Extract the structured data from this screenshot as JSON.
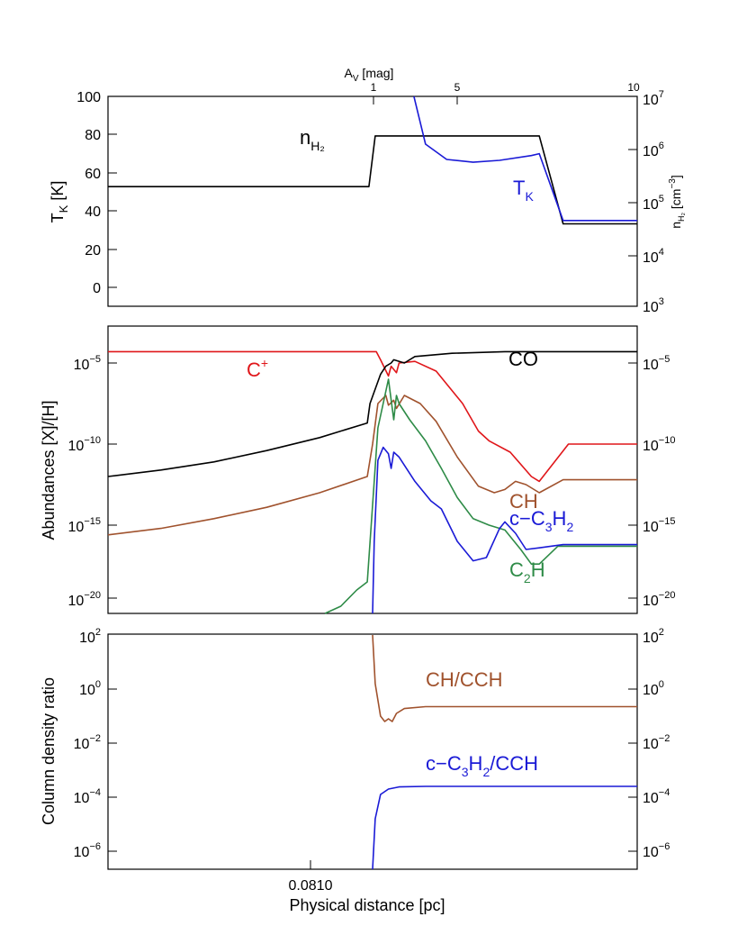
{
  "chart_data": [
    {
      "type": "line",
      "panel": "top",
      "top_axis": {
        "label_main": "A",
        "label_sub": "V",
        "label_rest": " [mag]",
        "ticks": [
          "1",
          "5",
          "10"
        ]
      },
      "left_axis": {
        "label_main": "T",
        "label_sub": "K",
        "label_rest": " [K]",
        "ticks": [
          "100",
          "80",
          "60",
          "40",
          "20",
          "0"
        ],
        "ylim": [
          -10,
          100
        ]
      },
      "right_axis": {
        "label_main": "n",
        "label_sub": "H₂",
        "label_rest": " [cm",
        "label_sup": "−3",
        "label_close": "]",
        "ticks_base": "10",
        "ticks_exp": [
          "7",
          "6",
          "5",
          "4",
          "3"
        ],
        "scale": "log",
        "ylim": [
          1000,
          10000000
        ]
      },
      "series": [
        {
          "label_main": "n",
          "label_sub": "H₂",
          "color": "#000000",
          "axis": "right",
          "points": [
            [
              0.0,
              200000
            ],
            [
              0.493,
              200000
            ],
            [
              0.505,
              1800000
            ],
            [
              0.815,
              1800000
            ],
            [
              0.86,
              40000
            ],
            [
              1.0,
              40000
            ]
          ]
        },
        {
          "label_main": "T",
          "label_sub": "K",
          "color": "#1a1ad6",
          "axis": "left",
          "points": [
            [
              0.578,
              100
            ],
            [
              0.6,
              75
            ],
            [
              0.64,
              67
            ],
            [
              0.69,
              65.5
            ],
            [
              0.74,
              66.5
            ],
            [
              0.8,
              69
            ],
            [
              0.815,
              70
            ],
            [
              0.86,
              35
            ],
            [
              1.0,
              35
            ]
          ]
        }
      ]
    },
    {
      "type": "line",
      "panel": "middle",
      "left_axis": {
        "label": "Abundances [X]/[H]",
        "ticks_base": "10",
        "ticks_exp": [
          "−5",
          "−10",
          "−15",
          "−20"
        ],
        "scale": "log",
        "ylim": [
          1e-21,
          0.001
        ]
      },
      "right_axis": {
        "ticks_base": "10",
        "ticks_exp": [
          "−5",
          "−10",
          "−15",
          "−20"
        ]
      },
      "series": [
        {
          "label_main": "C",
          "label_sup": "+",
          "color": "#e0161a",
          "points": [
            [
              0.0,
              -4.3
            ],
            [
              0.507,
              -4.3
            ],
            [
              0.515,
              -4.8
            ],
            [
              0.53,
              -5.8
            ],
            [
              0.535,
              -5.2
            ],
            [
              0.545,
              -5.6
            ],
            [
              0.55,
              -5.0
            ],
            [
              0.58,
              -4.9
            ],
            [
              0.62,
              -5.5
            ],
            [
              0.67,
              -7.5
            ],
            [
              0.7,
              -9.2
            ],
            [
              0.72,
              -9.8
            ],
            [
              0.76,
              -10.5
            ],
            [
              0.8,
              -12.0
            ],
            [
              0.815,
              -12.3
            ],
            [
              0.87,
              -10.0
            ],
            [
              1.0,
              -10.0
            ]
          ]
        },
        {
          "label_main": "CO",
          "color": "#000000",
          "points": [
            [
              0.0,
              -12.0
            ],
            [
              0.1,
              -11.6
            ],
            [
              0.2,
              -11.1
            ],
            [
              0.3,
              -10.4
            ],
            [
              0.4,
              -9.6
            ],
            [
              0.49,
              -8.7
            ],
            [
              0.495,
              -7.5
            ],
            [
              0.515,
              -5.7
            ],
            [
              0.525,
              -5.2
            ],
            [
              0.535,
              -5.0
            ],
            [
              0.54,
              -4.8
            ],
            [
              0.56,
              -5.0
            ],
            [
              0.58,
              -4.6
            ],
            [
              0.65,
              -4.4
            ],
            [
              0.75,
              -4.3
            ],
            [
              1.0,
              -4.3
            ]
          ]
        },
        {
          "label_main": "CH",
          "color": "#a0522d",
          "points": [
            [
              0.0,
              -15.6
            ],
            [
              0.1,
              -15.2
            ],
            [
              0.2,
              -14.6
            ],
            [
              0.3,
              -13.9
            ],
            [
              0.4,
              -13.0
            ],
            [
              0.49,
              -12.0
            ],
            [
              0.5,
              -10.0
            ],
            [
              0.51,
              -7.5
            ],
            [
              0.525,
              -7.0
            ],
            [
              0.53,
              -7.6
            ],
            [
              0.54,
              -7.3
            ],
            [
              0.545,
              -7.8
            ],
            [
              0.56,
              -7.0
            ],
            [
              0.59,
              -7.5
            ],
            [
              0.62,
              -8.6
            ],
            [
              0.66,
              -10.8
            ],
            [
              0.7,
              -12.6
            ],
            [
              0.73,
              -13.0
            ],
            [
              0.75,
              -12.8
            ],
            [
              0.77,
              -12.3
            ],
            [
              0.79,
              -12.5
            ],
            [
              0.815,
              -13.0
            ],
            [
              0.86,
              -12.2
            ],
            [
              1.0,
              -12.2
            ]
          ]
        },
        {
          "label_main": "C",
          "label_sub": "2",
          "label_rest": "H",
          "color": "#2e8b47",
          "points": [
            [
              0.41,
              -21.0
            ],
            [
              0.44,
              -20.0
            ],
            [
              0.47,
              -19.0
            ],
            [
              0.49,
              -18.5
            ],
            [
              0.51,
              -9.0
            ],
            [
              0.53,
              -6.0
            ],
            [
              0.54,
              -8.5
            ],
            [
              0.545,
              -7.0
            ],
            [
              0.55,
              -7.5
            ],
            [
              0.57,
              -8.5
            ],
            [
              0.6,
              -9.8
            ],
            [
              0.63,
              -11.5
            ],
            [
              0.66,
              -13.3
            ],
            [
              0.69,
              -14.6
            ],
            [
              0.72,
              -15.0
            ],
            [
              0.75,
              -15.3
            ],
            [
              0.78,
              -16.5
            ],
            [
              0.8,
              -17.4
            ],
            [
              0.815,
              -17.4
            ],
            [
              0.85,
              -16.3
            ],
            [
              1.0,
              -16.3
            ]
          ]
        },
        {
          "label_main": "c−C",
          "label_sub": "3",
          "label_rest": "H",
          "label_sub2": "2",
          "color": "#1a1ad6",
          "points": [
            [
              0.5,
              -21.0
            ],
            [
              0.503,
              -16.0
            ],
            [
              0.51,
              -11.0
            ],
            [
              0.52,
              -10.2
            ],
            [
              0.53,
              -10.6
            ],
            [
              0.535,
              -11.5
            ],
            [
              0.54,
              -10.5
            ],
            [
              0.55,
              -10.8
            ],
            [
              0.58,
              -12.3
            ],
            [
              0.61,
              -13.5
            ],
            [
              0.63,
              -14.0
            ],
            [
              0.66,
              -16.0
            ],
            [
              0.69,
              -17.2
            ],
            [
              0.715,
              -17.0
            ],
            [
              0.74,
              -15.2
            ],
            [
              0.75,
              -14.8
            ],
            [
              0.77,
              -15.5
            ],
            [
              0.79,
              -16.5
            ],
            [
              0.815,
              -16.4
            ],
            [
              0.86,
              -16.2
            ],
            [
              1.0,
              -16.2
            ]
          ]
        }
      ]
    },
    {
      "type": "line",
      "panel": "bottom",
      "left_axis": {
        "label": "Column density ratio",
        "ticks_base": "10",
        "ticks_exp": [
          "2",
          "0",
          "−2",
          "−4",
          "−6"
        ],
        "scale": "log",
        "ylim": [
          1e-07,
          100
        ]
      },
      "right_axis": {
        "ticks_base": "10",
        "ticks_exp": [
          "2",
          "0",
          "−2",
          "−4",
          "−6"
        ]
      },
      "x_axis": {
        "label": "Physical distance [pc]",
        "ticks": [
          "0.0810"
        ]
      },
      "series": [
        {
          "label": "CH/CCH",
          "color": "#a0522d",
          "points": [
            [
              0.5,
              2.0
            ],
            [
              0.505,
              0.2
            ],
            [
              0.515,
              -1.0
            ],
            [
              0.523,
              -1.2
            ],
            [
              0.53,
              -1.1
            ],
            [
              0.537,
              -1.2
            ],
            [
              0.545,
              -0.9
            ],
            [
              0.56,
              -0.72
            ],
            [
              0.6,
              -0.65
            ],
            [
              1.0,
              -0.65
            ]
          ]
        },
        {
          "label_main": "c−C",
          "label_sub": "3",
          "label_rest": "H",
          "label_sub2": "2",
          "label_tail": "/CCH",
          "color": "#1a1ad6",
          "points": [
            [
              0.5,
              -7.0
            ],
            [
              0.505,
              -4.8
            ],
            [
              0.515,
              -3.9
            ],
            [
              0.53,
              -3.7
            ],
            [
              0.55,
              -3.62
            ],
            [
              0.6,
              -3.6
            ],
            [
              1.0,
              -3.6
            ]
          ]
        }
      ]
    }
  ]
}
